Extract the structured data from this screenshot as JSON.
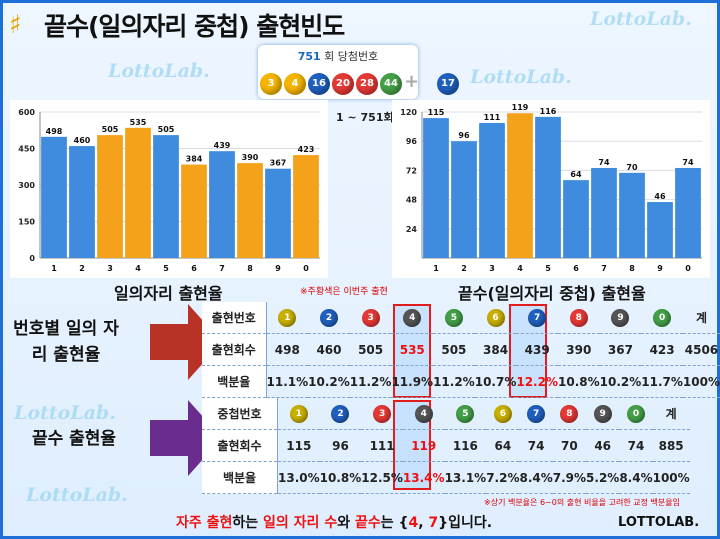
{
  "title": "끝수(일의자리 중첩) 출현빈도",
  "watermark": "LottoLab.",
  "draw": {
    "round": "751",
    "label": "회 당첨번호",
    "balls": [
      "3",
      "4",
      "16",
      "20",
      "28",
      "44"
    ],
    "bonus": "17",
    "plus": "+"
  },
  "range_label": "1 ~ 751회",
  "note": "※주황색은 이번주 출현",
  "colors": {
    "blue": "#3f8cde",
    "orange": "#f5a21b",
    "red": "#e11"
  },
  "chart_data": [
    {
      "type": "bar",
      "title": "일의자리 출현율",
      "categories": [
        "1",
        "2",
        "3",
        "4",
        "5",
        "6",
        "7",
        "8",
        "9",
        "0"
      ],
      "values": [
        498,
        460,
        505,
        535,
        505,
        384,
        439,
        390,
        367,
        423
      ],
      "highlighted": [
        "3",
        "4",
        "6",
        "8",
        "0"
      ],
      "yticks": [
        0,
        150,
        300,
        450,
        600
      ],
      "ylim": [
        0,
        600
      ]
    },
    {
      "type": "bar",
      "title": "끝수(일의자리 중첩) 출현율",
      "categories": [
        "1",
        "2",
        "3",
        "4",
        "5",
        "6",
        "7",
        "8",
        "9",
        "0"
      ],
      "values": [
        115,
        96,
        111,
        119,
        116,
        64,
        74,
        70,
        46,
        74
      ],
      "highlighted": [
        "4"
      ],
      "yticks": [
        24,
        48,
        72,
        96,
        120
      ],
      "ylim": [
        0,
        120
      ]
    }
  ],
  "table1": {
    "side_label": "번호별 일의 자리 출현율",
    "header_label": "출현번호",
    "numbers": [
      "1",
      "2",
      "3",
      "4",
      "5",
      "6",
      "7",
      "8",
      "9",
      "0"
    ],
    "total_label": "계",
    "count_label": "출현회수",
    "counts": [
      "498",
      "460",
      "505",
      "535",
      "505",
      "384",
      "439",
      "390",
      "367",
      "423"
    ],
    "count_total": "4506",
    "pct_label": "백분율",
    "pcts": [
      "11.1%",
      "10.2%",
      "11.2%",
      "11.9%",
      "11.2%",
      "10.7%",
      "12.2%",
      "10.8%",
      "10.2%",
      "11.7%"
    ],
    "pct_total": "100%"
  },
  "table2": {
    "side_label": "끝수 출현율",
    "header_label": "중첩번호",
    "numbers": [
      "1",
      "2",
      "3",
      "4",
      "5",
      "6",
      "7",
      "8",
      "9",
      "0"
    ],
    "total_label": "계",
    "count_label": "출현회수",
    "counts": [
      "115",
      "96",
      "111",
      "119",
      "116",
      "64",
      "74",
      "70",
      "46",
      "74"
    ],
    "count_total": "885",
    "pct_label": "백분율",
    "pcts": [
      "13.0%",
      "10.8%",
      "12.5%",
      "13.4%",
      "13.1%",
      "7.2%",
      "8.4%",
      "7.9%",
      "5.2%",
      "8.4%"
    ],
    "pct_total": "100%"
  },
  "footnote": "※상기 백분율은 6~0의 출현 비율을 고려한 교정 백분율임",
  "footer": {
    "part1": "자주 출현",
    "part2": "하는 ",
    "part3": "일의 자리 수",
    "part4": "와 ",
    "part5": "끝수",
    "part6": "는 {",
    "part7": "4",
    "part8": ", ",
    "part9": "7",
    "part10": "}입니다."
  },
  "brand": "LOTTOLAB."
}
